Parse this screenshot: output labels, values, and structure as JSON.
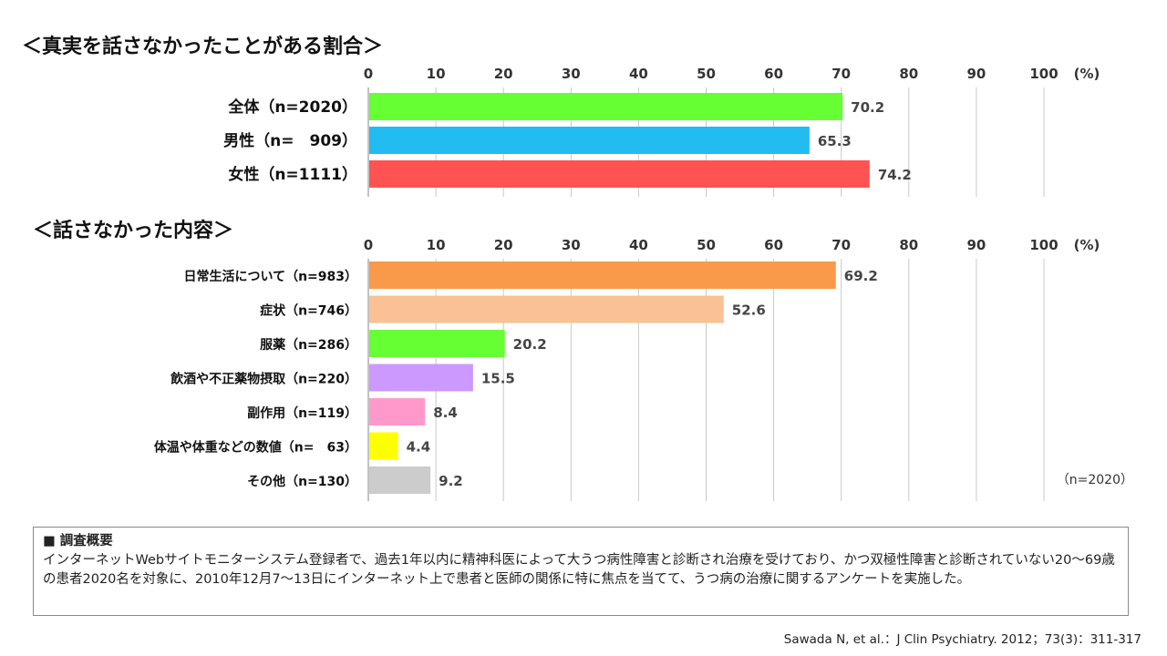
{
  "chart_data": [
    {
      "type": "bar",
      "orientation": "horizontal",
      "title": "＜真実を話さなかったことがある割合＞",
      "categories": [
        "全体（n=2020）",
        "男性（n=　909）",
        "女性（n=1111）"
      ],
      "values": [
        70.2,
        65.3,
        74.2
      ],
      "value_labels": [
        "70.2",
        "65.3",
        "74.2"
      ],
      "colors": [
        "#66ff33",
        "#22bbf2",
        "#ff5252"
      ],
      "xlim": [
        0,
        100
      ],
      "ticks": [
        "0",
        "10",
        "20",
        "30",
        "40",
        "50",
        "60",
        "70",
        "80",
        "90",
        "100"
      ],
      "unit": "(%)",
      "grid": true
    },
    {
      "type": "bar",
      "orientation": "horizontal",
      "title": "＜話さなかった内容＞",
      "categories": [
        "日常生活について（n=983）",
        "症状（n=746）",
        "服薬（n=286）",
        "飲酒や不正薬物摂取（n=220）",
        "副作用（n=119）",
        "体温や体重などの数値（n=　63）",
        "その他（n=130）"
      ],
      "values": [
        69.2,
        52.6,
        20.2,
        15.5,
        8.4,
        4.4,
        9.2
      ],
      "value_labels": [
        "69.2",
        "52.6",
        "20.2",
        "15.5",
        "8.4",
        "4.4",
        "9.2"
      ],
      "colors": [
        "#f99a4b",
        "#f9c194",
        "#66ff33",
        "#cc99ff",
        "#ff99cc",
        "#ffff00",
        "#cccccc"
      ],
      "xlim": [
        0,
        100
      ],
      "ticks": [
        "0",
        "10",
        "20",
        "30",
        "40",
        "50",
        "60",
        "70",
        "80",
        "90",
        "100"
      ],
      "unit": "(%)",
      "grid": true,
      "note": "（n=2020）"
    }
  ],
  "survey": {
    "title": "■ 調査概要",
    "text": "インターネットWebサイトモニターシステム登録者で、過去1年以内に精神科医によって大うつ病性障害と診断され治療を受けており、かつ双極性障害と診断されていない20～69歳の患者2020名を対象に、2010年12月7～13日にインターネット上で患者と医師の関係に特に焦点を当てて、うつ病の治療に関するアンケートを実施した。"
  },
  "citation": "Sawada N, et al.：J Clin Psychiatry. 2012；73(3)：311-317"
}
